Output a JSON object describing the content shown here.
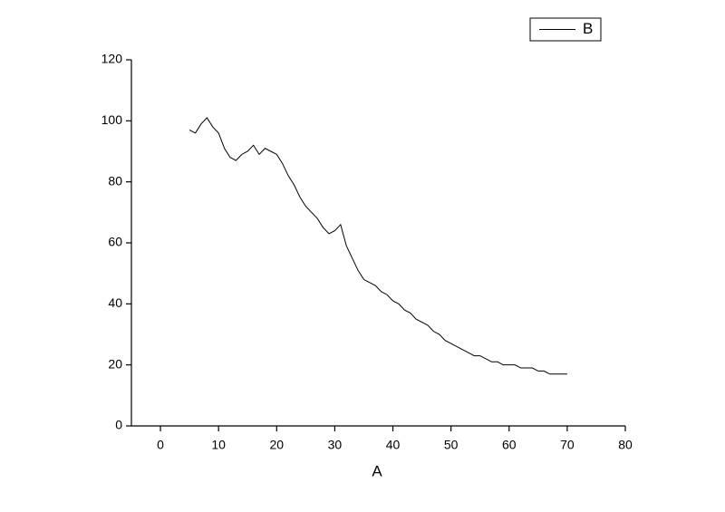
{
  "chart_data": {
    "type": "line",
    "x_label": "A",
    "series": [
      {
        "name": "B",
        "color": "#000000",
        "x": [
          5,
          6,
          7,
          8,
          9,
          10,
          11,
          12,
          13,
          14,
          15,
          16,
          17,
          18,
          19,
          20,
          21,
          22,
          23,
          24,
          25,
          26,
          27,
          28,
          29,
          30,
          31,
          32,
          33,
          34,
          35,
          36,
          37,
          38,
          39,
          40,
          41,
          42,
          43,
          44,
          45,
          46,
          47,
          48,
          49,
          50,
          51,
          52,
          53,
          54,
          55,
          56,
          57,
          58,
          59,
          60,
          61,
          62,
          63,
          64,
          65,
          66,
          67,
          68,
          69,
          70
        ],
        "values": [
          97,
          96,
          99,
          101,
          98,
          96,
          91,
          88,
          87,
          89,
          90,
          92,
          89,
          91,
          90,
          89,
          86,
          82,
          79,
          75,
          72,
          70,
          68,
          65,
          63,
          64,
          66,
          59,
          55,
          51,
          48,
          47,
          46,
          44,
          43,
          41,
          40,
          38,
          37,
          35,
          34,
          33,
          31,
          30,
          28,
          27,
          26,
          25,
          24,
          23,
          23,
          22,
          21,
          21,
          20,
          20,
          20,
          19,
          19,
          19,
          18,
          18,
          17,
          17,
          17,
          17
        ]
      }
    ],
    "xlim": [
      -5,
      80
    ],
    "xticks": [
      0,
      10,
      20,
      30,
      40,
      50,
      60,
      70,
      80
    ],
    "ylim": [
      0,
      120
    ],
    "yticks": [
      0,
      20,
      40,
      60,
      80,
      100,
      120
    ],
    "legend": "upper right"
  }
}
